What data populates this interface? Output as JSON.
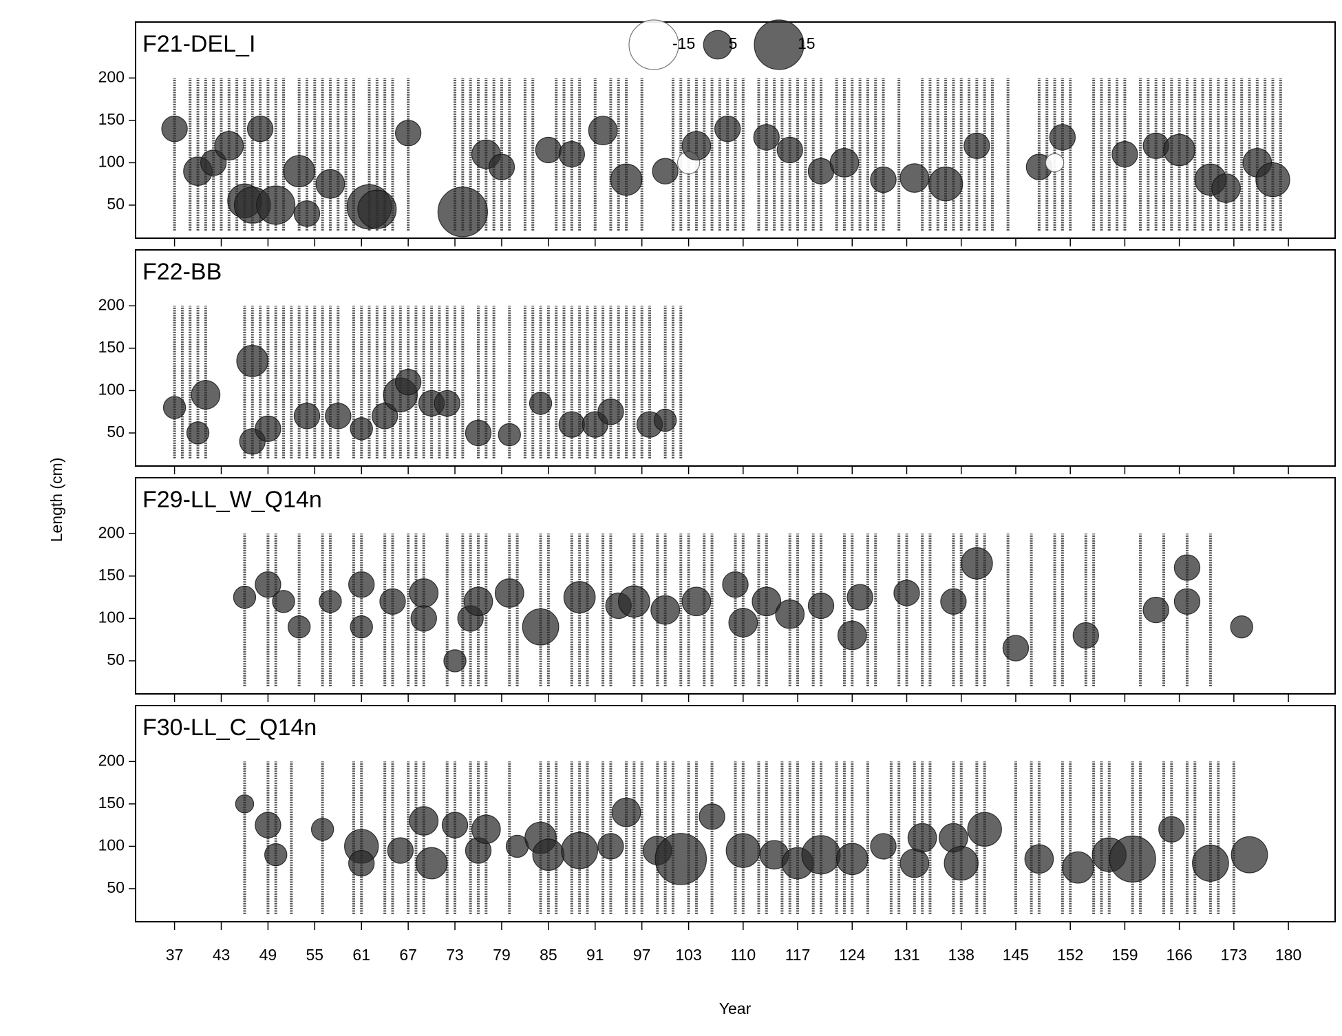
{
  "xlabel": "Year",
  "ylabel": "Length (cm)",
  "positive_color": "#2a2a2a",
  "negative_color": "#ffffff",
  "chart_data": [
    {
      "type": "bubble",
      "title": "F21-DEL_I",
      "xlim": [
        32,
        186
      ],
      "ylim": [
        11,
        266
      ],
      "yticks": [
        50,
        100,
        150,
        200
      ],
      "legend_sizes": [
        -15,
        5,
        15
      ],
      "length_range": [
        20,
        200
      ],
      "columns": [
        37,
        39,
        40,
        41,
        42,
        43,
        44,
        45,
        46,
        47,
        48,
        49,
        50,
        51,
        53,
        54,
        55,
        56,
        57,
        58,
        59,
        60,
        62,
        63,
        64,
        65,
        67,
        73,
        74,
        75,
        76,
        77,
        78,
        79,
        80,
        82,
        83,
        86,
        87,
        88,
        89,
        91,
        93,
        94,
        95,
        97,
        101,
        102,
        103,
        104,
        105,
        106,
        107,
        108,
        109,
        110,
        112,
        113,
        114,
        115,
        116,
        117,
        118,
        119,
        120,
        122,
        123,
        124,
        125,
        126,
        127,
        128,
        130,
        133,
        134,
        135,
        136,
        137,
        138,
        139,
        140,
        141,
        142,
        144,
        148,
        149,
        150,
        151,
        152,
        155,
        156,
        157,
        158,
        159,
        161,
        162,
        163,
        164,
        165,
        166,
        167,
        168,
        169,
        170,
        171,
        172,
        173,
        174,
        175,
        176,
        177,
        178,
        179
      ],
      "x": [
        37,
        40,
        42,
        44,
        46,
        47,
        48,
        50,
        53,
        54,
        57,
        62,
        63,
        67,
        74,
        77,
        79,
        85,
        88,
        92,
        95,
        100,
        103,
        104,
        108,
        113,
        116,
        120,
        123,
        128,
        132,
        136,
        140,
        148,
        150,
        151,
        159,
        163,
        166,
        170,
        172,
        176,
        178
      ],
      "y": [
        140,
        90,
        100,
        120,
        55,
        50,
        140,
        50,
        90,
        40,
        75,
        48,
        45,
        135,
        42,
        110,
        95,
        115,
        110,
        138,
        80,
        90,
        100,
        120,
        140,
        130,
        115,
        90,
        100,
        80,
        82,
        75,
        120,
        95,
        100,
        130,
        110,
        120,
        115,
        80,
        70,
        100,
        80
      ],
      "sizes": [
        4,
        5,
        4,
        5,
        7,
        8,
        4,
        9,
        6,
        4,
        5,
        12,
        9,
        4,
        15,
        5,
        4,
        4,
        4,
        5,
        6,
        4,
        -3,
        5,
        4,
        4,
        4,
        4,
        5,
        4,
        5,
        7,
        4,
        4,
        -2,
        4,
        4,
        4,
        6,
        6,
        5,
        5,
        7
      ]
    },
    {
      "type": "bubble",
      "title": "F22-BB",
      "xlim": [
        32,
        186
      ],
      "ylim": [
        11,
        266
      ],
      "yticks": [
        50,
        100,
        150,
        200
      ],
      "length_range": [
        20,
        200
      ],
      "columns": [
        37,
        38,
        39,
        40,
        41,
        46,
        47,
        48,
        49,
        50,
        51,
        52,
        53,
        54,
        55,
        56,
        57,
        58,
        60,
        61,
        62,
        63,
        64,
        65,
        66,
        67,
        68,
        69,
        70,
        71,
        72,
        73,
        74,
        76,
        77,
        78,
        80,
        82,
        83,
        84,
        85,
        86,
        87,
        88,
        89,
        90,
        91,
        92,
        93,
        94,
        95,
        96,
        97,
        98,
        100,
        101,
        102
      ],
      "x": [
        37,
        40,
        41,
        47,
        47,
        49,
        54,
        58,
        61,
        64,
        66,
        67,
        70,
        72,
        76,
        80,
        84,
        88,
        91,
        93,
        98,
        100
      ],
      "y": [
        80,
        50,
        95,
        135,
        40,
        55,
        70,
        70,
        55,
        70,
        95,
        110,
        85,
        85,
        50,
        48,
        85,
        60,
        60,
        75,
        60,
        65
      ],
      "sizes": [
        3,
        3,
        5,
        6,
        4,
        4,
        4,
        4,
        3,
        4,
        7,
        4,
        4,
        4,
        4,
        3,
        3,
        4,
        4,
        4,
        4,
        3
      ]
    },
    {
      "type": "bubble",
      "title": "F29-LL_W_Q14n",
      "xlim": [
        32,
        186
      ],
      "ylim": [
        11,
        266
      ],
      "yticks": [
        50,
        100,
        150,
        200
      ],
      "length_range": [
        20,
        200
      ],
      "columns": [
        46,
        49,
        50,
        53,
        56,
        57,
        60,
        61,
        64,
        65,
        67,
        68,
        69,
        72,
        74,
        75,
        76,
        77,
        80,
        81,
        84,
        85,
        88,
        89,
        90,
        92,
        93,
        96,
        97,
        99,
        100,
        102,
        103,
        105,
        106,
        109,
        110,
        112,
        113,
        116,
        117,
        119,
        120,
        123,
        124,
        126,
        127,
        130,
        131,
        133,
        134,
        137,
        138,
        140,
        141,
        144,
        147,
        150,
        151,
        154,
        155,
        161,
        164,
        167,
        170
      ],
      "x": [
        46,
        49,
        51,
        53,
        57,
        61,
        61,
        65,
        69,
        69,
        73,
        75,
        76,
        80,
        84,
        89,
        94,
        96,
        100,
        104,
        109,
        110,
        113,
        116,
        120,
        124,
        125,
        131,
        137,
        140,
        145,
        154,
        163,
        167,
        167,
        174
      ],
      "y": [
        125,
        140,
        120,
        90,
        120,
        140,
        90,
        120,
        130,
        100,
        50,
        100,
        120,
        130,
        90,
        125,
        115,
        120,
        110,
        120,
        140,
        95,
        120,
        105,
        115,
        80,
        125,
        130,
        120,
        165,
        65,
        80,
        110,
        160,
        120,
        90
      ],
      "sizes": [
        3,
        4,
        3,
        3,
        3,
        4,
        3,
        4,
        5,
        4,
        3,
        4,
        5,
        5,
        8,
        6,
        4,
        6,
        5,
        5,
        4,
        5,
        5,
        5,
        4,
        5,
        4,
        4,
        4,
        6,
        4,
        4,
        4,
        4,
        4,
        3
      ]
    },
    {
      "type": "bubble",
      "title": "F30-LL_C_Q14n",
      "xlim": [
        32,
        186
      ],
      "ylim": [
        11,
        266
      ],
      "yticks": [
        50,
        100,
        150,
        200
      ],
      "xticks": [
        37,
        43,
        49,
        55,
        61,
        67,
        73,
        79,
        85,
        91,
        97,
        103,
        110,
        117,
        124,
        131,
        138,
        145,
        152,
        159,
        166,
        173,
        180
      ],
      "length_range": [
        20,
        200
      ],
      "columns": [
        46,
        49,
        50,
        52,
        56,
        60,
        61,
        64,
        65,
        67,
        68,
        69,
        72,
        73,
        75,
        76,
        77,
        80,
        84,
        85,
        86,
        88,
        89,
        90,
        92,
        93,
        95,
        96,
        97,
        99,
        100,
        101,
        103,
        104,
        106,
        109,
        110,
        112,
        113,
        115,
        116,
        117,
        119,
        120,
        122,
        123,
        124,
        126,
        129,
        130,
        132,
        133,
        134,
        137,
        138,
        140,
        141,
        145,
        147,
        148,
        151,
        152,
        155,
        156,
        157,
        160,
        161,
        164,
        165,
        167,
        168,
        170,
        171,
        173
      ],
      "x": [
        46,
        49,
        50,
        56,
        61,
        61,
        66,
        69,
        70,
        73,
        76,
        77,
        81,
        84,
        85,
        89,
        93,
        95,
        99,
        102,
        106,
        110,
        114,
        117,
        120,
        124,
        128,
        132,
        133,
        137,
        138,
        141,
        148,
        153,
        157,
        160,
        165,
        170,
        175
      ],
      "y": [
        150,
        125,
        90,
        120,
        100,
        80,
        95,
        130,
        80,
        125,
        95,
        120,
        100,
        110,
        90,
        95,
        100,
        140,
        95,
        85,
        135,
        95,
        90,
        80,
        90,
        85,
        100,
        80,
        110,
        110,
        80,
        120,
        85,
        75,
        90,
        85,
        120,
        80,
        90
      ],
      "sizes": [
        2,
        4,
        3,
        3,
        7,
        4,
        4,
        5,
        6,
        4,
        4,
        5,
        3,
        6,
        6,
        8,
        4,
        5,
        5,
        16,
        4,
        7,
        5,
        6,
        9,
        6,
        4,
        5,
        5,
        5,
        7,
        7,
        5,
        6,
        7,
        13,
        4,
        8,
        8
      ]
    }
  ]
}
